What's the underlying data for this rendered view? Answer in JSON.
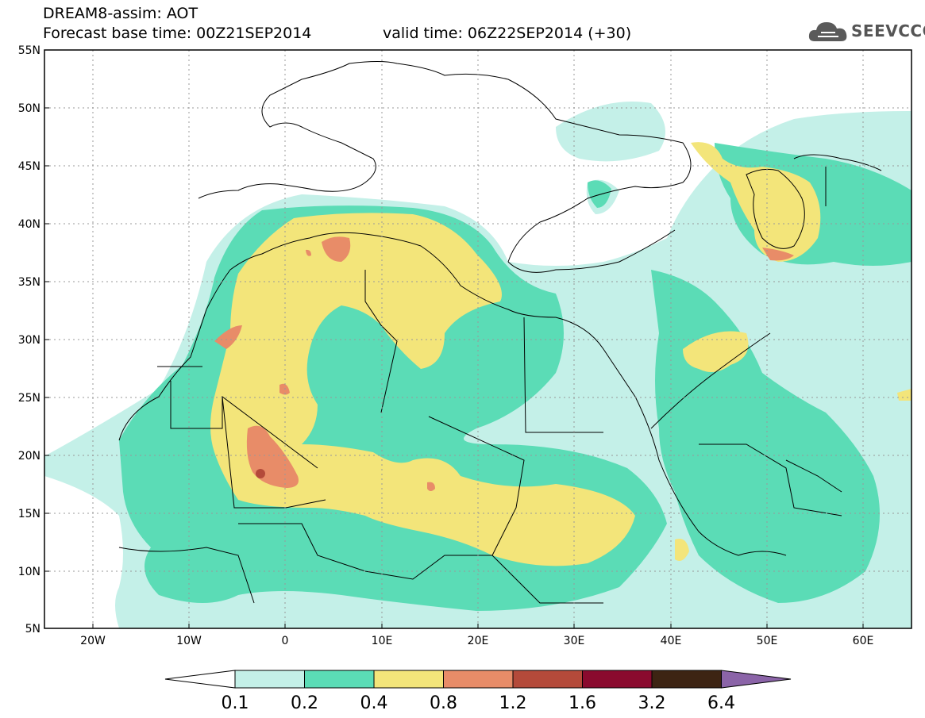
{
  "header": {
    "title": "DREAM8-assim: AOT",
    "base_time": "Forecast base time: 00Z21SEP2014",
    "valid_time": "valid time: 06Z22SEP2014 (+30)",
    "logo_text": "SEEVCCC",
    "logo_icon": "cloud-icon"
  },
  "map": {
    "lon_range": [
      -25,
      65
    ],
    "lat_range": [
      5,
      55
    ],
    "lat_labels": [
      "55N",
      "50N",
      "45N",
      "40N",
      "35N",
      "30N",
      "25N",
      "20N",
      "15N",
      "10N",
      "5N"
    ],
    "lon_labels": [
      "20W",
      "10W",
      "0",
      "10E",
      "20E",
      "30E",
      "40E",
      "50E",
      "60E"
    ],
    "field": "Aerosol Optical Thickness"
  },
  "colorbar": {
    "labels": [
      "0.1",
      "0.2",
      "0.4",
      "0.8",
      "1.2",
      "1.6",
      "3.2",
      "6.4"
    ],
    "colors": [
      "#ffffff",
      "#c4f0e8",
      "#5bdcb6",
      "#f3e57a",
      "#e88c68",
      "#b44a3a",
      "#8a0a2e",
      "#3d2413",
      "#8b64a8"
    ]
  }
}
